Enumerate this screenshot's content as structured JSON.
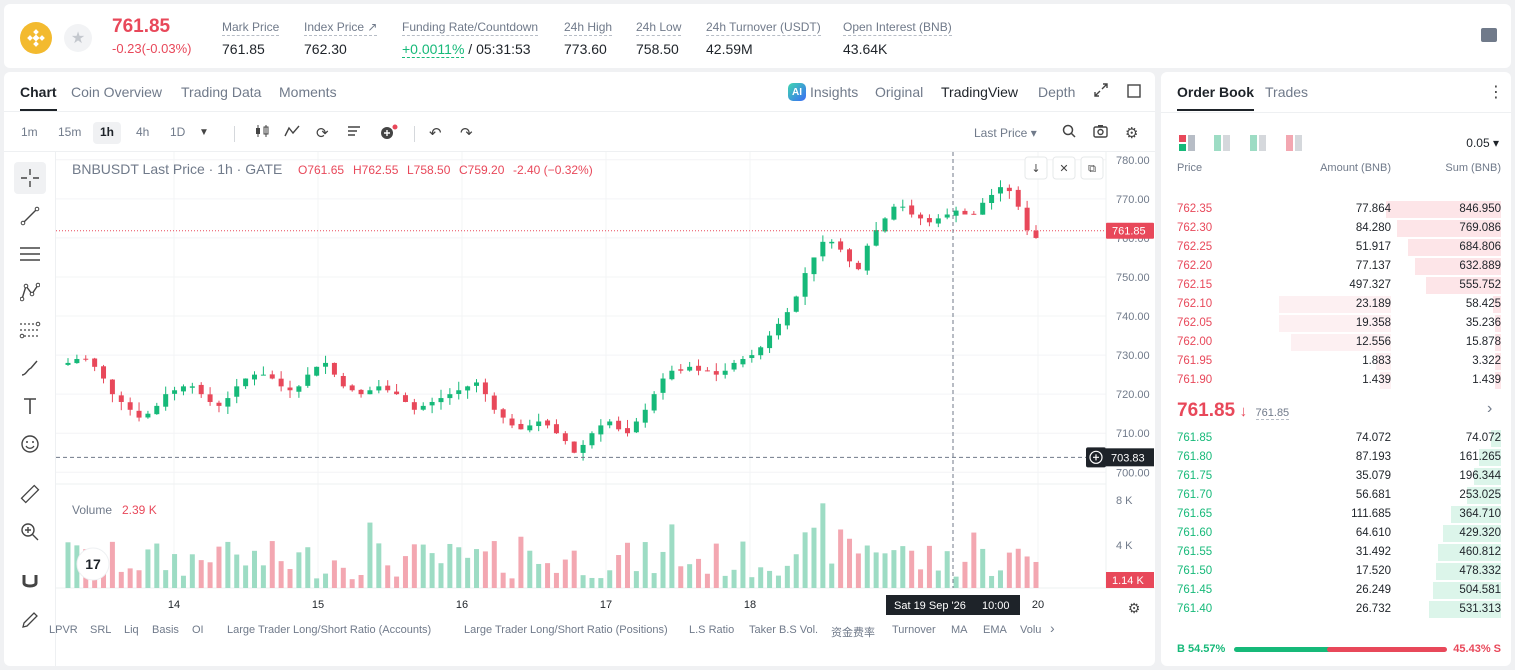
{
  "ticker": {
    "last_price": "761.85",
    "change": "-0.23(-0.03%)",
    "stats": [
      {
        "label": "Mark Price",
        "value": "761.85"
      },
      {
        "label": "Index Price ↗",
        "value": "762.30"
      },
      {
        "label": "Funding Rate/Countdown",
        "value_green": "+0.0011%",
        "value": " / 05:31:53"
      },
      {
        "label": "24h High",
        "value": "773.60"
      },
      {
        "label": "24h Low",
        "value": "758.50"
      },
      {
        "label": "24h Turnover (USDT)",
        "value": "42.59M"
      },
      {
        "label": "Open Interest (BNB)",
        "value": "43.64K"
      }
    ]
  },
  "chart_tabs": [
    "Chart",
    "Coin Overview",
    "Trading Data",
    "Moments"
  ],
  "view_tabs": {
    "insights": "Insights",
    "original": "Original",
    "tradingview": "TradingView",
    "depth": "Depth",
    "ai": "AI"
  },
  "timeframes": [
    "1m",
    "15m",
    "1h",
    "4h",
    "1D"
  ],
  "price_type": "Last Price ▾",
  "legend": {
    "symbol": "BNBUSDT Last Price · 1h · GATE",
    "o": "O761.65",
    "h": "H762.55",
    "l": "L758.50",
    "c": "C759.20",
    "chg": "-2.40 (−0.32%)"
  },
  "volume_label": "Volume",
  "volume_value": "2.39 K",
  "crosshair": {
    "price": "703.83",
    "time": "Sat 19 Sep '26",
    "hour": "10:00",
    "last_tag": "761.85",
    "vol_tag": "1.14 K"
  },
  "tv_logo": "17",
  "bottom_indicators": [
    "LPVR",
    "SRL",
    "Liq",
    "Basis",
    "OI",
    "Large Trader Long/Short Ratio (Accounts)",
    "Large Trader Long/Short Ratio (Positions)",
    "L.S Ratio",
    "Taker B.S Vol.",
    "资金费率",
    "Turnover",
    "MA",
    "EMA",
    "Volu"
  ],
  "chart_data": {
    "type": "candlestick",
    "price_axis": [
      "780.00",
      "770.00",
      "760.00",
      "750.00",
      "740.00",
      "730.00",
      "720.00",
      "710.00",
      "700.00"
    ],
    "volume_axis": [
      "8 K",
      "4 K"
    ],
    "x_ticks": [
      "14",
      "15",
      "16",
      "17",
      "18",
      "20"
    ],
    "ylim": [
      697,
      782
    ],
    "close_path": [
      728,
      729,
      729,
      727,
      724,
      720,
      718,
      716,
      714,
      715,
      717,
      720,
      721,
      722,
      722,
      720,
      718,
      717,
      719,
      722,
      724,
      725,
      725,
      724,
      722,
      721,
      722,
      725,
      727,
      728,
      725,
      722,
      721,
      720,
      721,
      722,
      721,
      720,
      718,
      716,
      717,
      718,
      719,
      720,
      721,
      722,
      723,
      720,
      716,
      714,
      712,
      711,
      712,
      713,
      712,
      710,
      708,
      705,
      707,
      710,
      712,
      713,
      711,
      710,
      713,
      716,
      720,
      724,
      726,
      726,
      727,
      726,
      726,
      725,
      726,
      728,
      729,
      730,
      732,
      735,
      738,
      741,
      745,
      751,
      755,
      759,
      759,
      757,
      754,
      752,
      758,
      762,
      765,
      768,
      768,
      766,
      765,
      764,
      765,
      766,
      767,
      766,
      766,
      769,
      771,
      773,
      772,
      768,
      762,
      760
    ],
    "volume_seed": 1
  },
  "orderbook": {
    "tabs": [
      "Order Book",
      "Trades"
    ],
    "precision": "0.05 ▾",
    "headers": [
      "Price",
      "Amount (BNB)",
      "Sum (BNB)"
    ],
    "asks": [
      {
        "p": "762.35",
        "a": "77.864",
        "s": "846.950"
      },
      {
        "p": "762.30",
        "a": "84.280",
        "s": "769.086"
      },
      {
        "p": "762.25",
        "a": "51.917",
        "s": "684.806"
      },
      {
        "p": "762.20",
        "a": "77.137",
        "s": "632.889"
      },
      {
        "p": "762.15",
        "a": "497.327",
        "s": "555.752"
      },
      {
        "p": "762.10",
        "a": "23.189",
        "s": "58.425"
      },
      {
        "p": "762.05",
        "a": "19.358",
        "s": "35.236"
      },
      {
        "p": "762.00",
        "a": "12.556",
        "s": "15.878"
      },
      {
        "p": "761.95",
        "a": "1.883",
        "s": "3.322"
      },
      {
        "p": "761.90",
        "a": "1.439",
        "s": "1.439"
      }
    ],
    "mid_price": "761.85",
    "mid_arrow": "↓",
    "mid_mark": "761.85",
    "bids": [
      {
        "p": "761.85",
        "a": "74.072",
        "s": "74.072"
      },
      {
        "p": "761.80",
        "a": "87.193",
        "s": "161.265"
      },
      {
        "p": "761.75",
        "a": "35.079",
        "s": "196.344"
      },
      {
        "p": "761.70",
        "a": "56.681",
        "s": "253.025"
      },
      {
        "p": "761.65",
        "a": "111.685",
        "s": "364.710"
      },
      {
        "p": "761.60",
        "a": "64.610",
        "s": "429.320"
      },
      {
        "p": "761.55",
        "a": "31.492",
        "s": "460.812"
      },
      {
        "p": "761.50",
        "a": "17.520",
        "s": "478.332"
      },
      {
        "p": "761.45",
        "a": "26.249",
        "s": "504.581"
      },
      {
        "p": "761.40",
        "a": "26.732",
        "s": "531.313"
      }
    ],
    "buy_ratio": "B 54.57%",
    "sell_ratio": "45.43% S",
    "buy_pct": 54.57
  },
  "colors": {
    "up": "#16b979",
    "down": "#e8485a",
    "up_vol": "#9ddcc4",
    "down_vol": "#f3a7b1"
  }
}
